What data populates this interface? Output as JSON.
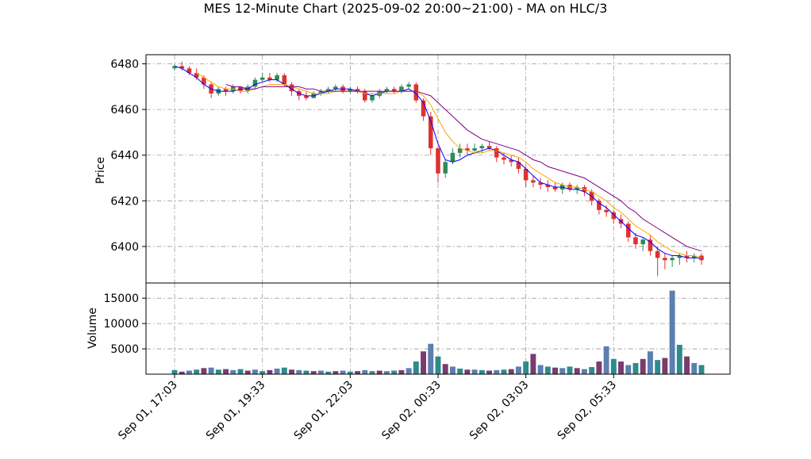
{
  "chart_data": {
    "type": "candlestick",
    "title": "MES 12-Minute Chart (2025-09-02 20:00~21:00) - MA on HLC/3",
    "price_panel": {
      "ylabel": "Price",
      "ylim": [
        6384,
        6484
      ],
      "yticks": [
        6400,
        6420,
        6440,
        6460,
        6480
      ],
      "grid": true
    },
    "volume_panel": {
      "ylabel": "Volume",
      "ylim": [
        0,
        18000
      ],
      "yticks": [
        5000,
        10000,
        15000
      ],
      "ytick_labels": [
        "5000",
        "10000",
        "15000"
      ],
      "grid": true
    },
    "x_axis": {
      "bar_count": 73,
      "tick_labels": [
        "Sep 01, 17:03",
        "Sep 01, 19:33",
        "Sep 01, 22:03",
        "Sep 02, 00:33",
        "Sep 02, 03:03",
        "Sep 02, 05:33"
      ],
      "tick_bar_index": [
        0,
        12,
        24,
        36,
        48,
        60
      ]
    },
    "colors": {
      "up": "#2e8b57",
      "down": "#e03030",
      "volume": [
        "#2e8b8b",
        "#7a3b6e",
        "#5a7fb0"
      ],
      "ma_fast": "#0000ff",
      "ma_mid": "#ffa500",
      "ma_slow": "#800080",
      "grid": "#9a9a9a"
    },
    "candles_ohlc": [
      [
        6478,
        6480,
        6477,
        6479
      ],
      [
        6479,
        6481,
        6477,
        6478
      ],
      [
        6478,
        6479,
        6475,
        6476
      ],
      [
        6476,
        6478,
        6473,
        6474
      ],
      [
        6474,
        6475,
        6469,
        6471
      ],
      [
        6471,
        6472,
        6465,
        6467
      ],
      [
        6467,
        6470,
        6466,
        6469
      ],
      [
        6469,
        6470,
        6466,
        6468
      ],
      [
        6468,
        6471,
        6467,
        6470
      ],
      [
        6470,
        6470,
        6467,
        6468
      ],
      [
        6468,
        6471,
        6467,
        6470
      ],
      [
        6470,
        6474,
        6469,
        6473
      ],
      [
        6473,
        6476,
        6472,
        6474
      ],
      [
        6474,
        6476,
        6472,
        6473
      ],
      [
        6473,
        6476,
        6472,
        6475
      ],
      [
        6475,
        6476,
        6470,
        6471
      ],
      [
        6471,
        6472,
        6466,
        6468
      ],
      [
        6468,
        6469,
        6464,
        6466
      ],
      [
        6466,
        6468,
        6464,
        6465
      ],
      [
        6465,
        6468,
        6465,
        6467
      ],
      [
        6467,
        6469,
        6466,
        6468
      ],
      [
        6468,
        6470,
        6467,
        6469
      ],
      [
        6469,
        6471,
        6468,
        6470
      ],
      [
        6470,
        6471,
        6467,
        6468
      ],
      [
        6468,
        6470,
        6467,
        6469
      ],
      [
        6469,
        6470,
        6467,
        6468
      ],
      [
        6468,
        6469,
        6463,
        6464
      ],
      [
        6464,
        6467,
        6463,
        6466
      ],
      [
        6466,
        6469,
        6465,
        6468
      ],
      [
        6468,
        6470,
        6467,
        6469
      ],
      [
        6469,
        6470,
        6467,
        6468
      ],
      [
        6468,
        6471,
        6467,
        6470
      ],
      [
        6470,
        6472,
        6469,
        6471
      ],
      [
        6471,
        6472,
        6463,
        6464
      ],
      [
        6464,
        6465,
        6455,
        6457
      ],
      [
        6457,
        6459,
        6440,
        6443
      ],
      [
        6443,
        6444,
        6428,
        6432
      ],
      [
        6432,
        6438,
        6430,
        6437
      ],
      [
        6437,
        6443,
        6436,
        6441
      ],
      [
        6441,
        6445,
        6439,
        6443
      ],
      [
        6443,
        6445,
        6440,
        6442
      ],
      [
        6442,
        6445,
        6441,
        6443
      ],
      [
        6443,
        6445,
        6441,
        6444
      ],
      [
        6444,
        6446,
        6442,
        6443
      ],
      [
        6443,
        6444,
        6437,
        6439
      ],
      [
        6439,
        6441,
        6436,
        6438
      ],
      [
        6438,
        6440,
        6435,
        6437
      ],
      [
        6437,
        6439,
        6432,
        6434
      ],
      [
        6434,
        6435,
        6426,
        6429
      ],
      [
        6429,
        6431,
        6426,
        6428
      ],
      [
        6428,
        6430,
        6425,
        6427
      ],
      [
        6427,
        6429,
        6424,
        6426
      ],
      [
        6426,
        6428,
        6424,
        6425
      ],
      [
        6425,
        6428,
        6423,
        6427
      ],
      [
        6427,
        6428,
        6424,
        6425
      ],
      [
        6425,
        6427,
        6423,
        6426
      ],
      [
        6426,
        6427,
        6422,
        6424
      ],
      [
        6424,
        6425,
        6418,
        6420
      ],
      [
        6420,
        6421,
        6414,
        6416
      ],
      [
        6416,
        6418,
        6413,
        6415
      ],
      [
        6415,
        6416,
        6410,
        6412
      ],
      [
        6412,
        6414,
        6408,
        6410
      ],
      [
        6410,
        6411,
        6402,
        6404
      ],
      [
        6404,
        6406,
        6399,
        6401
      ],
      [
        6401,
        6404,
        6398,
        6403
      ],
      [
        6403,
        6405,
        6396,
        6398
      ],
      [
        6398,
        6400,
        6387,
        6395
      ],
      [
        6395,
        6397,
        6390,
        6394
      ],
      [
        6394,
        6396,
        6391,
        6395
      ],
      [
        6395,
        6397,
        6392,
        6396
      ],
      [
        6396,
        6398,
        6393,
        6395
      ],
      [
        6395,
        6397,
        6393,
        6396
      ],
      [
        6396,
        6397,
        6392,
        6394
      ]
    ],
    "volumes": [
      800,
      500,
      700,
      900,
      1200,
      1300,
      900,
      1000,
      800,
      1000,
      700,
      900,
      600,
      800,
      1100,
      1300,
      900,
      800,
      700,
      600,
      700,
      500,
      600,
      700,
      500,
      600,
      800,
      600,
      700,
      600,
      700,
      800,
      1200,
      2500,
      4500,
      6000,
      3500,
      2000,
      1500,
      1100,
      900,
      900,
      800,
      700,
      800,
      900,
      1000,
      1500,
      2500,
      4000,
      1800,
      1500,
      1300,
      1200,
      1500,
      1200,
      1000,
      1400,
      2500,
      5500,
      3000,
      2500,
      1800,
      2200,
      3000,
      4500,
      2800,
      3200,
      16500,
      5800,
      3500,
      2200,
      1800
    ],
    "series": [
      {
        "name": "",
        "color": "#0000ff",
        "values": [
          6479,
          6478,
          6476,
          6474,
          6471,
          6469,
          6468,
          6468,
          6468,
          6469,
          6469,
          6471,
          6472,
          6473,
          6473,
          6471,
          6469,
          6467,
          6466,
          6466,
          6467,
          6468,
          6469,
          6469,
          6469,
          6468,
          6467,
          6466,
          6467,
          6468,
          6468,
          6468,
          6469,
          6467,
          6463,
          6455,
          6445,
          6438,
          6437,
          6438,
          6440,
          6441,
          6442,
          6443,
          6442,
          6440,
          6438,
          6437,
          6434,
          6431,
          6428,
          6427,
          6426,
          6426,
          6425,
          6425,
          6424,
          6422,
          6419,
          6417,
          6414,
          6411,
          6408,
          6405,
          6404,
          6402,
          6399,
          6397,
          6396,
          6396,
          6395,
          6395,
          6395
        ]
      },
      {
        "name": "",
        "color": "#ffa500",
        "values": [
          null,
          null,
          null,
          6476,
          6474,
          6472,
          6470,
          6469,
          6469,
          6468,
          6468,
          6469,
          6470,
          6471,
          6471,
          6471,
          6470,
          6469,
          6468,
          6467,
          6467,
          6467,
          6468,
          6468,
          6468,
          6468,
          6467,
          6467,
          6467,
          6467,
          6467,
          6468,
          6468,
          6468,
          6466,
          6462,
          6456,
          6450,
          6446,
          6443,
          6442,
          6441,
          6441,
          6442,
          6442,
          6441,
          6440,
          6439,
          6437,
          6434,
          6432,
          6430,
          6428,
          6427,
          6426,
          6426,
          6425,
          6424,
          6422,
          6420,
          6417,
          6415,
          6412,
          6409,
          6407,
          6405,
          6402,
          6400,
          6398,
          6397,
          6396,
          6396,
          6395
        ]
      },
      {
        "name": "",
        "color": "#800080",
        "values": [
          null,
          null,
          null,
          null,
          null,
          null,
          null,
          6471,
          6470,
          6470,
          6469,
          6469,
          6470,
          6470,
          6470,
          6470,
          6470,
          6470,
          6469,
          6469,
          6468,
          6468,
          6468,
          6468,
          6468,
          6468,
          6468,
          6468,
          6468,
          6468,
          6468,
          6468,
          6468,
          6468,
          6467,
          6466,
          6463,
          6460,
          6457,
          6454,
          6451,
          6449,
          6447,
          6446,
          6445,
          6444,
          6443,
          6442,
          6440,
          6438,
          6437,
          6435,
          6434,
          6433,
          6432,
          6431,
          6430,
          6428,
          6426,
          6424,
          6422,
          6420,
          6417,
          6415,
          6412,
          6410,
          6408,
          6406,
          6404,
          6402,
          6400,
          6399,
          6398
        ]
      }
    ]
  }
}
